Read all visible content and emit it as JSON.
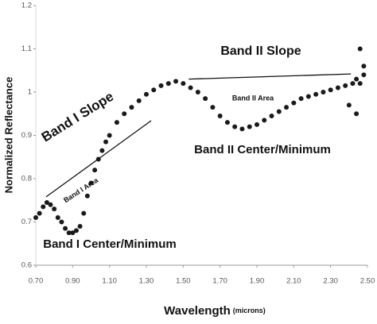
{
  "chart_data": {
    "type": "scatter",
    "xlabel": "Wavelength",
    "xlabel_unit": "(microns)",
    "ylabel": "Normalized Reflectance",
    "color": "#1a1a1a",
    "xlim": [
      0.7,
      2.5
    ],
    "ylim": [
      0.6,
      1.2
    ],
    "xticks": [
      {
        "value": 0.7,
        "label": "0.70"
      },
      {
        "value": 0.9,
        "label": "0.90"
      },
      {
        "value": 1.1,
        "label": "1.10"
      },
      {
        "value": 1.3,
        "label": "1.30"
      },
      {
        "value": 1.5,
        "label": "1.50"
      },
      {
        "value": 1.7,
        "label": "1.70"
      },
      {
        "value": 1.9,
        "label": "1.90"
      },
      {
        "value": 2.1,
        "label": "2.10"
      },
      {
        "value": 2.3,
        "label": "2.30"
      },
      {
        "value": 2.5,
        "label": "2.50"
      }
    ],
    "yticks": [
      0.6,
      0.7,
      0.8,
      0.9,
      1,
      1.1,
      1.2
    ],
    "x": [
      0.7,
      0.72,
      0.74,
      0.76,
      0.78,
      0.8,
      0.82,
      0.84,
      0.86,
      0.88,
      0.9,
      0.92,
      0.94,
      0.96,
      0.98,
      1.0,
      1.02,
      1.04,
      1.06,
      1.08,
      1.1,
      1.14,
      1.18,
      1.22,
      1.26,
      1.3,
      1.34,
      1.38,
      1.42,
      1.46,
      1.5,
      1.54,
      1.58,
      1.62,
      1.66,
      1.7,
      1.74,
      1.78,
      1.82,
      1.86,
      1.9,
      1.94,
      1.98,
      2.02,
      2.06,
      2.1,
      2.14,
      2.18,
      2.22,
      2.26,
      2.3,
      2.34,
      2.38,
      2.42,
      2.44,
      2.46,
      2.48,
      2.46,
      2.44,
      2.4,
      2.48
    ],
    "values": [
      0.71,
      0.72,
      0.735,
      0.745,
      0.74,
      0.73,
      0.71,
      0.7,
      0.685,
      0.675,
      0.675,
      0.68,
      0.69,
      0.72,
      0.76,
      0.79,
      0.82,
      0.845,
      0.865,
      0.885,
      0.9,
      0.93,
      0.95,
      0.965,
      0.98,
      0.995,
      1.005,
      1.015,
      1.02,
      1.025,
      1.02,
      1.01,
      1.0,
      0.985,
      0.965,
      0.945,
      0.93,
      0.92,
      0.915,
      0.92,
      0.925,
      0.935,
      0.945,
      0.955,
      0.965,
      0.975,
      0.985,
      0.99,
      0.995,
      1.0,
      1.005,
      1.01,
      1.015,
      1.02,
      1.03,
      1.02,
      1.04,
      1.1,
      0.95,
      0.97,
      1.06
    ],
    "lines": [
      {
        "x": [
          0.756,
          1.326
        ],
        "y": [
          0.758,
          0.934
        ]
      },
      {
        "x": [
          1.53,
          2.41
        ],
        "y": [
          1.03,
          1.042
        ]
      }
    ],
    "annotations": [
      "Band II Slope",
      "Band I Slope",
      "Band II Area",
      "Band I Area",
      "Band I Center/Minimum",
      "Band II Center/Minimum"
    ]
  }
}
